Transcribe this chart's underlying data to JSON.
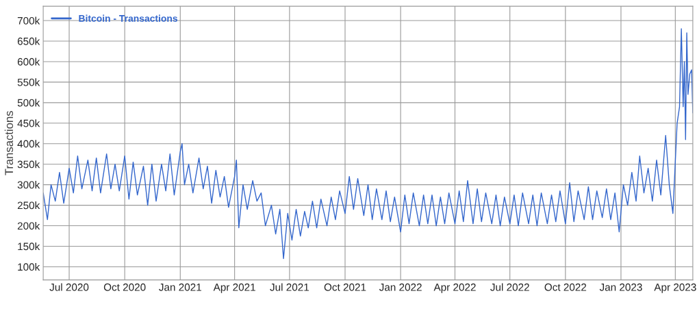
{
  "chart_data": {
    "type": "line",
    "ylabel": "Transactions",
    "legend": "top left",
    "grid": true,
    "marker": "none",
    "line_style": "solid",
    "xlim": [
      "2020-05-19",
      "2023-04-30"
    ],
    "ylim": [
      68000,
      735000
    ],
    "xticks": [
      {
        "value": "2020-07-01",
        "label": "Jul 2020"
      },
      {
        "value": "2020-10-01",
        "label": "Oct 2020"
      },
      {
        "value": "2021-01-01",
        "label": "Jan 2021"
      },
      {
        "value": "2021-04-01",
        "label": "Apr 2021"
      },
      {
        "value": "2021-07-01",
        "label": "Jul 2021"
      },
      {
        "value": "2021-10-01",
        "label": "Oct 2021"
      },
      {
        "value": "2022-01-01",
        "label": "Jan 2022"
      },
      {
        "value": "2022-04-01",
        "label": "Apr 2022"
      },
      {
        "value": "2022-07-01",
        "label": "Jul 2022"
      },
      {
        "value": "2022-10-01",
        "label": "Oct 2022"
      },
      {
        "value": "2023-01-01",
        "label": "Jan 2023"
      },
      {
        "value": "2023-04-01",
        "label": "Apr 2023"
      }
    ],
    "yticks": [
      {
        "value": 100000,
        "label": "100k"
      },
      {
        "value": 150000,
        "label": "150k"
      },
      {
        "value": 200000,
        "label": "200k"
      },
      {
        "value": 250000,
        "label": "250k"
      },
      {
        "value": 300000,
        "label": "300k"
      },
      {
        "value": 350000,
        "label": "350k"
      },
      {
        "value": 400000,
        "label": "400k"
      },
      {
        "value": 450000,
        "label": "450k"
      },
      {
        "value": 500000,
        "label": "500k"
      },
      {
        "value": 550000,
        "label": "550k"
      },
      {
        "value": 600000,
        "label": "600k"
      },
      {
        "value": 650000,
        "label": "650k"
      },
      {
        "value": 700000,
        "label": "700k"
      }
    ],
    "series": [
      {
        "name": "Bitcoin - Transactions",
        "color": "#3366cc",
        "x": [
          "2020-05-19",
          "2020-05-26",
          "2020-06-01",
          "2020-06-08",
          "2020-06-15",
          "2020-06-22",
          "2020-07-01",
          "2020-07-08",
          "2020-07-15",
          "2020-07-22",
          "2020-08-01",
          "2020-08-08",
          "2020-08-15",
          "2020-08-22",
          "2020-09-01",
          "2020-09-08",
          "2020-09-15",
          "2020-09-22",
          "2020-10-01",
          "2020-10-08",
          "2020-10-15",
          "2020-10-22",
          "2020-11-01",
          "2020-11-08",
          "2020-11-15",
          "2020-11-22",
          "2020-12-01",
          "2020-12-08",
          "2020-12-15",
          "2020-12-22",
          "2021-01-01",
          "2021-01-04",
          "2021-01-08",
          "2021-01-15",
          "2021-01-22",
          "2021-02-01",
          "2021-02-08",
          "2021-02-15",
          "2021-02-22",
          "2021-03-01",
          "2021-03-08",
          "2021-03-15",
          "2021-03-22",
          "2021-04-01",
          "2021-04-04",
          "2021-04-08",
          "2021-04-15",
          "2021-04-22",
          "2021-05-01",
          "2021-05-08",
          "2021-05-15",
          "2021-05-22",
          "2021-06-01",
          "2021-06-08",
          "2021-06-15",
          "2021-06-21",
          "2021-06-28",
          "2021-07-05",
          "2021-07-12",
          "2021-07-19",
          "2021-07-26",
          "2021-08-01",
          "2021-08-08",
          "2021-08-15",
          "2021-08-22",
          "2021-09-01",
          "2021-09-08",
          "2021-09-15",
          "2021-09-22",
          "2021-10-01",
          "2021-10-08",
          "2021-10-15",
          "2021-10-22",
          "2021-11-01",
          "2021-11-08",
          "2021-11-15",
          "2021-11-22",
          "2021-12-01",
          "2021-12-08",
          "2021-12-15",
          "2021-12-22",
          "2022-01-01",
          "2022-01-08",
          "2022-01-15",
          "2022-01-22",
          "2022-02-01",
          "2022-02-08",
          "2022-02-15",
          "2022-02-22",
          "2022-03-01",
          "2022-03-08",
          "2022-03-15",
          "2022-03-22",
          "2022-04-01",
          "2022-04-08",
          "2022-04-15",
          "2022-04-22",
          "2022-05-01",
          "2022-05-08",
          "2022-05-15",
          "2022-05-22",
          "2022-06-01",
          "2022-06-08",
          "2022-06-15",
          "2022-06-22",
          "2022-07-01",
          "2022-07-08",
          "2022-07-15",
          "2022-07-22",
          "2022-08-01",
          "2022-08-08",
          "2022-08-15",
          "2022-08-22",
          "2022-09-01",
          "2022-09-08",
          "2022-09-15",
          "2022-09-22",
          "2022-10-01",
          "2022-10-08",
          "2022-10-15",
          "2022-10-22",
          "2022-11-01",
          "2022-11-08",
          "2022-11-15",
          "2022-11-22",
          "2022-12-01",
          "2022-12-08",
          "2022-12-15",
          "2022-12-22",
          "2022-12-29",
          "2023-01-05",
          "2023-01-12",
          "2023-01-19",
          "2023-01-26",
          "2023-02-01",
          "2023-02-08",
          "2023-02-15",
          "2023-02-22",
          "2023-03-01",
          "2023-03-08",
          "2023-03-16",
          "2023-03-22",
          "2023-03-28",
          "2023-04-04",
          "2023-04-08",
          "2023-04-11",
          "2023-04-14",
          "2023-04-16",
          "2023-04-18",
          "2023-04-20",
          "2023-04-22",
          "2023-04-25",
          "2023-04-28",
          "2023-04-30"
        ],
        "values": [
          280000,
          215000,
          300000,
          260000,
          330000,
          255000,
          340000,
          280000,
          370000,
          290000,
          360000,
          285000,
          365000,
          280000,
          375000,
          290000,
          350000,
          285000,
          370000,
          265000,
          355000,
          275000,
          345000,
          250000,
          350000,
          260000,
          350000,
          285000,
          375000,
          275000,
          380000,
          400000,
          300000,
          350000,
          280000,
          365000,
          290000,
          345000,
          255000,
          335000,
          270000,
          320000,
          245000,
          320000,
          360000,
          195000,
          300000,
          240000,
          310000,
          260000,
          280000,
          200000,
          250000,
          180000,
          240000,
          120000,
          230000,
          165000,
          240000,
          175000,
          235000,
          195000,
          260000,
          195000,
          265000,
          200000,
          270000,
          215000,
          285000,
          230000,
          320000,
          240000,
          315000,
          225000,
          300000,
          215000,
          290000,
          215000,
          285000,
          210000,
          270000,
          185000,
          275000,
          205000,
          280000,
          200000,
          275000,
          205000,
          275000,
          200000,
          270000,
          205000,
          280000,
          205000,
          285000,
          210000,
          310000,
          205000,
          290000,
          210000,
          280000,
          205000,
          275000,
          200000,
          270000,
          205000,
          275000,
          200000,
          280000,
          205000,
          275000,
          200000,
          280000,
          205000,
          275000,
          210000,
          285000,
          205000,
          305000,
          210000,
          285000,
          215000,
          295000,
          215000,
          285000,
          220000,
          290000,
          215000,
          280000,
          185000,
          300000,
          250000,
          330000,
          260000,
          370000,
          280000,
          340000,
          260000,
          360000,
          275000,
          420000,
          300000,
          230000,
          450000,
          490000,
          680000,
          490000,
          600000,
          410000,
          670000,
          520000,
          570000,
          580000,
          475000
        ]
      }
    ]
  }
}
